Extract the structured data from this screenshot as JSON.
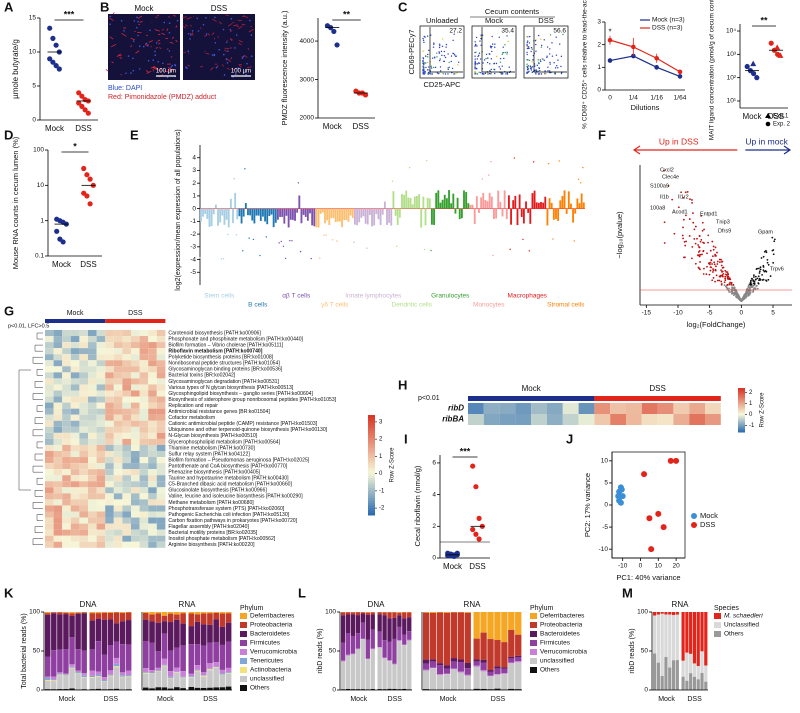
{
  "panel_labels": [
    "A",
    "B",
    "C",
    "D",
    "E",
    "F",
    "G",
    "H",
    "I",
    "J",
    "K",
    "L",
    "M"
  ],
  "panel_a": {
    "ylabel": "µmole butyrate/g",
    "categories": [
      "Mock",
      "DSS"
    ],
    "significance": "***",
    "ylim": [
      0,
      15
    ],
    "yticks": [
      0,
      5,
      10,
      15
    ],
    "groups": [
      {
        "color": "#1c2f8c",
        "values": [
          13.5,
          12,
          11,
          10,
          9,
          8.5,
          8,
          7.5
        ]
      },
      {
        "color": "#e3241b",
        "values": [
          4,
          3.5,
          3,
          2.8,
          2.5,
          2,
          1.5,
          1
        ]
      }
    ]
  },
  "panel_b": {
    "image_labels": [
      "Mock",
      "DSS"
    ],
    "scale_bars": [
      "100 µm",
      "100 µm"
    ],
    "caption_blue": "Blue: DAPI",
    "caption_red": "Red: Pimonidazole (PMDZ) adduct",
    "ylabel": "PMDZ fluorescence intensity (a.u.)",
    "categories": [
      "Mock",
      "DSS"
    ],
    "significance": "**",
    "ylim": [
      2000,
      4600
    ],
    "yticks": [
      2000,
      3000,
      4000
    ],
    "groups": [
      {
        "color": "#1c2f8c",
        "values": [
          4400,
          4350,
          4250,
          3900
        ]
      },
      {
        "color": "#e3241b",
        "values": [
          2700,
          2650,
          2650,
          2600
        ]
      }
    ]
  },
  "panel_c": {
    "flow": {
      "title": "Cecum contents",
      "gates": [
        "Unloaded",
        "Mock",
        "DSS"
      ],
      "gate_values": [
        27.2,
        35.4,
        56.6
      ],
      "ylabel": "CD69-PECy7",
      "xlabel": "CD25-APC"
    },
    "line": {
      "type": "line",
      "categories": [
        "0",
        "1/4",
        "1/16",
        "1/64"
      ],
      "xlabel": "Dilutions",
      "ylabel": "% CD69⁺ CD25⁺ cells relative to lead-the-activity",
      "significance": "*",
      "ylim": [
        0,
        3
      ],
      "yticks": [
        0,
        1,
        2,
        3
      ],
      "series": [
        {
          "name": "Mock (n=3)",
          "color": "#1c2f8c",
          "values": [
            1.3,
            1.5,
            1.0,
            0.6
          ],
          "errors": [
            0.1,
            0.1,
            0.1,
            0.1
          ]
        },
        {
          "name": "DSS (n=3)",
          "color": "#e3241b",
          "values": [
            2.2,
            1.9,
            1.4,
            0.8
          ],
          "errors": [
            0.2,
            0.4,
            0.2,
            0.1
          ]
        }
      ]
    },
    "mait": {
      "ylabel": "MAIT ligand concentration (pmol/g of cecum content)",
      "categories": [
        "Mock",
        "DSS"
      ],
      "significance": "**",
      "log_scale": true,
      "ylim": [
        5,
        20000
      ],
      "yticks": [
        {
          "value": 10,
          "label": "10¹"
        },
        {
          "value": 100,
          "label": "10²"
        },
        {
          "value": 1000,
          "label": "10³"
        },
        {
          "value": 10000,
          "label": "10⁴"
        }
      ],
      "legend": [
        "Exp.1",
        "Exp. 2"
      ],
      "groups": [
        {
          "color": "#1c2f8c",
          "exp1": [
            400
          ],
          "exp2": [
            300,
            200,
            150,
            100
          ]
        },
        {
          "color": "#e3241b",
          "exp1": [
            2000,
            900
          ],
          "exp2": [
            3000,
            1500,
            1000
          ]
        }
      ]
    }
  },
  "panel_d": {
    "ylabel": "Mouse RNA counts in cecum lumen (%)",
    "categories": [
      "Mock",
      "DSS"
    ],
    "significance": "*",
    "log_scale": true,
    "ylim": [
      0.1,
      100
    ],
    "yticks": [
      0.1,
      1,
      10,
      100
    ],
    "groups": [
      {
        "color": "#1c2f8c",
        "values": [
          1.1,
          1,
          0.9,
          0.8,
          0.5,
          0.3,
          0.25
        ]
      },
      {
        "color": "#e3241b",
        "values": [
          30,
          20,
          15,
          10,
          6,
          5,
          3
        ]
      }
    ]
  },
  "panel_e": {
    "ylabel": "log2(expression/mean expression of all populations)",
    "ylim": [
      -6,
      5
    ],
    "yticks": [
      -5,
      -4,
      -3,
      -2,
      -1,
      0,
      1,
      2,
      3,
      4
    ],
    "cell_types": [
      {
        "name": "Stem cells",
        "color": "#a6cee3"
      },
      {
        "name": "B cells",
        "color": "#1f78b4"
      },
      {
        "name": "αβ T cells",
        "color": "#7b52ae"
      },
      {
        "name": "γδ T cells",
        "color": "#fdbf6f"
      },
      {
        "name": "Innate lymphocytes",
        "color": "#cab2d6"
      },
      {
        "name": "Dendritic cells",
        "color": "#b2df8a"
      },
      {
        "name": "Granulocytes",
        "color": "#33a02c"
      },
      {
        "name": "Monocytes",
        "color": "#fb9a99"
      },
      {
        "name": "Macrophages",
        "color": "#e31a1c"
      },
      {
        "name": "Stromal cells",
        "color": "#ff7f00"
      }
    ]
  },
  "panel_f": {
    "up_left": "Up in DSS",
    "up_right": "Up in mock",
    "xlabel": "log₂(FoldChange)",
    "ylabel": "−log₁₀(pvalue)",
    "xlim": [
      -16,
      8
    ],
    "xticks": [
      -15,
      -10,
      -5,
      0,
      5
    ],
    "genes": [
      "Cxcl2",
      "Clec4e",
      "S100a9",
      "Il1b",
      "Il1r2",
      "100a8",
      "Acod1",
      "Entpd1",
      "Tnip3",
      "Dfrs9",
      "Gpam",
      "Trpv6"
    ]
  },
  "panel_g": {
    "filter": "p<0.01, LFC>0.5",
    "groups": [
      "Mock",
      "DSS"
    ],
    "highlight_row": 3,
    "rows": [
      "Carotenoid biosynthesis [PATH:ko00906]",
      "Phosphonate and phosphinate metabolism [PATH:ko00440]",
      "Biofilm formation – Vibrio cholerae [PATH:ko05111]",
      "Riboflavin metabolism [PATH:ko00740]",
      "Polyketide biosynthesis proteins [BR:ko01008]",
      "Nonribosomal peptide structures [PATH:ko01054]",
      "Glycosaminoglycan binding proteins [BR:ko00536]",
      "Bacterial toxins [BR:ko02042]",
      "Glycosaminoglycan degradation [PATH:ko00531]",
      "Various types of N glycan biosynthesis [PATH:ko00513]",
      "Glycosphingolipid biosynthesis – ganglio series [PATH:ko00604]",
      "Biosynthesis of siderophore group nonribosomal peptides [PATH:ko01053]",
      "Replication and repair",
      "Antimicrobial resistance genes [BR:ko01504]",
      "Cofactor metabolism",
      "Cationic antimicrobial peptide (CAMP) resistance [PATH:ko01503]",
      "Ubiquinone and other terpenoid-quinone biosynthesis [PATH:ko00130]",
      "N-Glycan biosynthesis [PATH:ko00510]",
      "Glycerophospholipid metabolism [PATH:ko00564]",
      "Thiamine metabolism [PATH:ko00730]",
      "Sulfur relay system [PATH:ko04122]",
      "Biofilm formation – Pseudomonas aeruginosa [PATH:ko02025]",
      "Pantothenate and CoA biosynthesis [PATH:ko00770]",
      "Phenazine biosynthesis [PATH:ko00405]",
      "Taurine and hypotaurine metabolism [PATH:ko00430]",
      "C5-Branched dibasic acid metabolism [PATH:ko00660]",
      "Glucosinolate biosynthesis [PATH:ko00966]",
      "Valine, leucine and isoleucine biosynthesis [PATH:ko00290]",
      "Methane metabolism [PATH:ko00680]",
      "Phosphotransferase system (PTS) [PATH:ko02060]",
      "Pathogenic Escherichia coli infection [PATH:ko05130]",
      "Carbon fixation pathways in prokaryotes [PATH:ko00720]",
      "Flagellar assembly [PATH:ko02040]",
      "Bacterial motility proteins [BR:ko02035]",
      "Inositol phosphate metabolism [PATH:ko00562]",
      "Arginine biosynthesis [PATH:ko00220]"
    ],
    "colorbar": {
      "title": "Row Z-Score",
      "lim": [
        -2.4,
        3.4
      ],
      "ticks": [
        -2,
        -1,
        0,
        1,
        2,
        3
      ]
    }
  },
  "panel_h": {
    "filter": "p<0.01",
    "groups": [
      "Mock",
      "DSS"
    ],
    "rows": [
      "ribD",
      "ribBA"
    ],
    "colorbar": {
      "title": "Row Z-Score",
      "lim": [
        -1.6,
        2.4
      ],
      "ticks": [
        -1,
        0,
        1,
        2
      ]
    }
  },
  "panel_i": {
    "ylabel": "Cecal riboflavin (nmol/g)",
    "categories": [
      "Mock",
      "DSS"
    ],
    "significance": "***",
    "ylim": [
      0,
      6.5
    ],
    "yticks": [
      0,
      2,
      4,
      6
    ],
    "groups": [
      {
        "color": "#1c2f8c",
        "values": [
          0.3,
          0.25,
          0.2,
          0.2,
          0.15,
          0.15,
          0.1,
          0.3
        ]
      },
      {
        "color": "#e3241b",
        "values": [
          5.8,
          4.5,
          2.5,
          2,
          1.8,
          1.5,
          1.2
        ]
      }
    ]
  },
  "panel_j": {
    "type": "scatter",
    "xlabel": "PC1: 40% variance",
    "ylabel": "PC2: 17% variance",
    "xlim": [
      -16,
      25
    ],
    "xticks": [
      -10,
      0,
      10,
      20
    ],
    "ylim": [
      -12,
      12
    ],
    "yticks": [
      -10,
      -5,
      0,
      5,
      10
    ],
    "series": [
      {
        "name": "Mock",
        "color": "#3a8fd6",
        "x": [
          -12,
          -11,
          -10,
          -12,
          -11,
          -10.5,
          -12.5
        ],
        "y": [
          3,
          4,
          2,
          1,
          0.5,
          3.5,
          2
        ]
      },
      {
        "name": "DSS",
        "color": "#e3241b",
        "x": [
          17,
          20,
          2,
          5,
          10,
          13,
          6
        ],
        "y": [
          10,
          10,
          7,
          -3,
          -2,
          -5,
          -10
        ]
      }
    ]
  },
  "panel_k": {
    "subplots": [
      "DNA",
      "RNA"
    ],
    "ylabel": "Total bacterial reads (%)",
    "yticks": [
      0,
      50,
      100
    ],
    "ylim": [
      0,
      100
    ],
    "group_labels": [
      "Mock",
      "DSS"
    ],
    "legend_title": "Phylum",
    "legend": [
      {
        "name": "Deferribacteres",
        "color": "#f5a623"
      },
      {
        "name": "Proteobacteria",
        "color": "#c0392b"
      },
      {
        "name": "Bacteroidetes",
        "color": "#5b1a5e"
      },
      {
        "name": "Firmicutes",
        "color": "#8e3fa0"
      },
      {
        "name": "Verrucomicrobia",
        "color": "#c87fd6"
      },
      {
        "name": "Tenericutes",
        "color": "#7fa8d8"
      },
      {
        "name": "Actinobacteria",
        "color": "#f3e27a"
      },
      {
        "name": "unclassified",
        "color": "#c8c8c8"
      },
      {
        "name": "Others",
        "color": "#111111"
      }
    ]
  },
  "panel_l": {
    "subplots": [
      "DNA",
      "RNA"
    ],
    "ylabel": "ribD reads (%)",
    "yticks": [
      0,
      50,
      100
    ],
    "ylim": [
      0,
      100
    ],
    "group_labels": [
      "Mock",
      "DSS"
    ],
    "legend_title": "Phylum",
    "legend": [
      {
        "name": "Deferribacteres",
        "color": "#f5a623"
      },
      {
        "name": "Proteobacteria",
        "color": "#c0392b"
      },
      {
        "name": "Bacteroidetes",
        "color": "#5b1a5e"
      },
      {
        "name": "Firmicutes",
        "color": "#8e3fa0"
      },
      {
        "name": "Verrucomicrobia",
        "color": "#c87fd6"
      },
      {
        "name": "unclassified",
        "color": "#c8c8c8"
      },
      {
        "name": "Others",
        "color": "#111111"
      }
    ]
  },
  "panel_m": {
    "subplots": [
      "RNA"
    ],
    "ylabel": "ribD reads (%)",
    "yticks": [
      0,
      50,
      100
    ],
    "ylim": [
      0,
      100
    ],
    "group_labels": [
      "Mock",
      "DSS"
    ],
    "legend_title": "Species",
    "legend": [
      {
        "name": "M. schaedleri",
        "color": "#e3241b"
      },
      {
        "name": "Unclassified",
        "color": "#d9d9d9"
      },
      {
        "name": "Others",
        "color": "#999999"
      }
    ]
  }
}
